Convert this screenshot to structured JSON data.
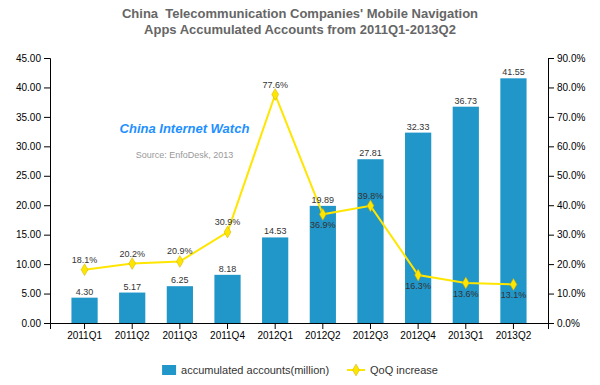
{
  "chart_data": {
    "type": "bar",
    "title": "China  Telecommunication Companies' Mobile Navigation\nApps Accumulated Accounts from 2011Q1-2013Q2",
    "categories": [
      "2011Q1",
      "2011Q2",
      "2011Q3",
      "2011Q4",
      "2012Q1",
      "2012Q2",
      "2012Q3",
      "2012Q4",
      "2013Q1",
      "2013Q2"
    ],
    "series": [
      {
        "name": "accumulated accounts(million)",
        "type": "bar",
        "color": "#2196C8",
        "values": [
          4.3,
          5.17,
          6.25,
          8.18,
          14.53,
          19.89,
          27.81,
          32.33,
          36.73,
          41.55
        ],
        "value_labels": [
          "4.30",
          "5.17",
          "6.25",
          "8.18",
          "14.53",
          "19.89",
          "27.81",
          "32.33",
          "36.73",
          "41.55"
        ]
      },
      {
        "name": "QoQ increase",
        "type": "line",
        "axis": "y2",
        "color": "#FFE600",
        "marker": "diamond",
        "values": [
          18.1,
          20.2,
          20.9,
          30.9,
          77.6,
          36.9,
          39.8,
          16.3,
          13.6,
          13.1
        ],
        "value_labels": [
          "18.1%",
          "20.2%",
          "20.9%",
          "30.9%",
          "77.6%",
          "36.9%",
          "39.8%",
          "16.3%",
          "13.6%",
          "13.1%"
        ]
      }
    ],
    "ylim": [
      0,
      45
    ],
    "yticks": [
      {
        "value": 0,
        "label": "0.00"
      },
      {
        "value": 5,
        "label": "5.00"
      },
      {
        "value": 10,
        "label": "10.00"
      },
      {
        "value": 15,
        "label": "15.00"
      },
      {
        "value": 20,
        "label": "20.00"
      },
      {
        "value": 25,
        "label": "25.00"
      },
      {
        "value": 30,
        "label": "30.00"
      },
      {
        "value": 35,
        "label": "35.00"
      },
      {
        "value": 40,
        "label": "40.00"
      },
      {
        "value": 45,
        "label": "45.00"
      }
    ],
    "y2lim": [
      0,
      90
    ],
    "y2ticks": [
      {
        "value": 0,
        "label": "0.0%"
      },
      {
        "value": 10,
        "label": "10.0%"
      },
      {
        "value": 20,
        "label": "20.0%"
      },
      {
        "value": 30,
        "label": "30.0%"
      },
      {
        "value": 40,
        "label": "40.0%"
      },
      {
        "value": 50,
        "label": "50.0%"
      },
      {
        "value": 60,
        "label": "60.0%"
      },
      {
        "value": 70,
        "label": "70.0%"
      },
      {
        "value": 80,
        "label": "80.0%"
      },
      {
        "value": 90,
        "label": "90.0%"
      }
    ],
    "data_labels": true,
    "legend": "bottom",
    "annotations": [
      "China Internet Watch",
      "Source: EnfoDesk, 2013"
    ]
  }
}
